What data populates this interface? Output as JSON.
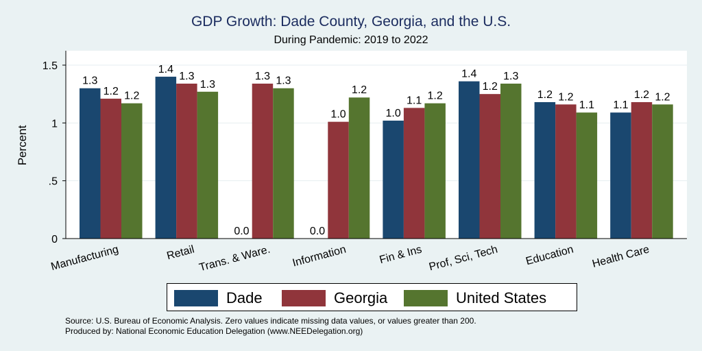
{
  "chart_data": {
    "type": "bar",
    "title": "GDP Growth: Dade County, Georgia, and the U.S.",
    "subtitle": "During Pandemic: 2019 to 2022",
    "ylabel": "Percent",
    "xlabel": "",
    "ylim": [
      0,
      1.6
    ],
    "yticks": [
      {
        "value": 0,
        "label": "0"
      },
      {
        "value": 0.5,
        "label": ".5"
      },
      {
        "value": 1,
        "label": "1"
      },
      {
        "value": 1.5,
        "label": "1.5"
      }
    ],
    "grid": true,
    "legend_position": "bottom",
    "categories": [
      "Manufacturing",
      "Retail",
      "Trans. & Ware.",
      "Information",
      "Fin & Ins",
      "Prof, Sci, Tech",
      "Education",
      "Health Care"
    ],
    "series": [
      {
        "name": "Dade",
        "color": "#1a476f",
        "values": [
          1.3,
          1.4,
          0.0,
          0.0,
          1.02,
          1.36,
          1.18,
          1.09
        ],
        "labels": [
          "1.3",
          "1.4",
          "0.0",
          "0.0",
          "1.0",
          "1.4",
          "1.2",
          "1.1"
        ]
      },
      {
        "name": "Georgia",
        "color": "#90353b",
        "values": [
          1.21,
          1.34,
          1.34,
          1.01,
          1.13,
          1.25,
          1.16,
          1.18
        ],
        "labels": [
          "1.2",
          "1.3",
          "1.3",
          "1.0",
          "1.1",
          "1.2",
          "1.2",
          "1.2"
        ]
      },
      {
        "name": "United States",
        "color": "#55752f",
        "values": [
          1.17,
          1.27,
          1.3,
          1.22,
          1.17,
          1.34,
          1.09,
          1.16
        ],
        "labels": [
          "1.2",
          "1.3",
          "1.3",
          "1.2",
          "1.2",
          "1.3",
          "1.1",
          "1.2"
        ]
      }
    ]
  },
  "footer": {
    "source": "Source: U.S. Bureau of Economic Analysis. Zero values indicate missing data values, or values greater than 200.",
    "produced_by": "Produced by: National Economic Education Delegation (www.NEEDelegation.org)"
  }
}
